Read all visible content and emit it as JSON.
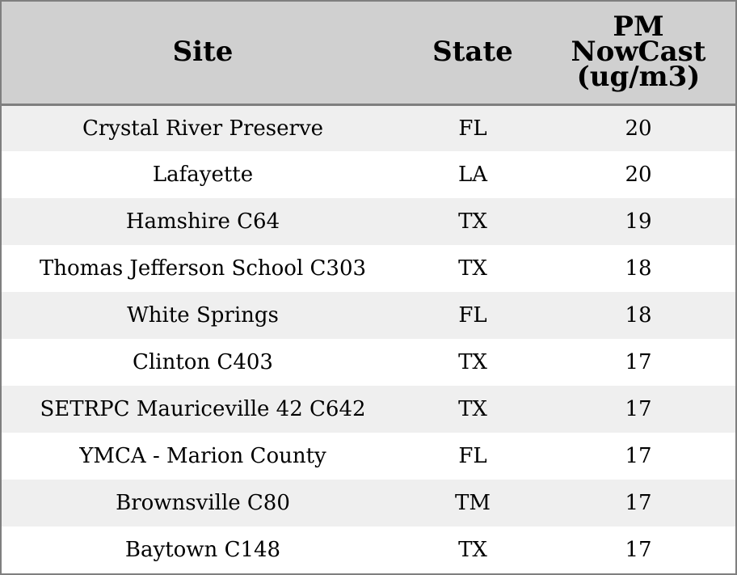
{
  "chart_data": {
    "type": "table",
    "columns": [
      "Site",
      "State",
      "PM NowCast (ug/m3)"
    ],
    "header_lines": {
      "site": [
        "Site"
      ],
      "state": [
        "State"
      ],
      "value": [
        "PM",
        "NowCast",
        "(ug/m3)"
      ]
    },
    "rows": [
      {
        "site": "Crystal River Preserve",
        "state": "FL",
        "value": "20"
      },
      {
        "site": "Lafayette",
        "state": "LA",
        "value": "20"
      },
      {
        "site": "Hamshire C64",
        "state": "TX",
        "value": "19"
      },
      {
        "site": "Thomas Jefferson School C303",
        "state": "TX",
        "value": "18"
      },
      {
        "site": "White Springs",
        "state": "FL",
        "value": "18"
      },
      {
        "site": "Clinton C403",
        "state": "TX",
        "value": "17"
      },
      {
        "site": "SETRPC Mauriceville 42 C642",
        "state": "TX",
        "value": "17"
      },
      {
        "site": "YMCA - Marion County",
        "state": "FL",
        "value": "17"
      },
      {
        "site": "Brownsville C80",
        "state": "TM",
        "value": "17"
      },
      {
        "site": "Baytown C148",
        "state": "TX",
        "value": "17"
      }
    ]
  },
  "colors": {
    "header_bg": "#d0d0d0",
    "stripe_bg": "#efefef",
    "row_bg": "#ffffff",
    "border": "#7f7f7f"
  }
}
